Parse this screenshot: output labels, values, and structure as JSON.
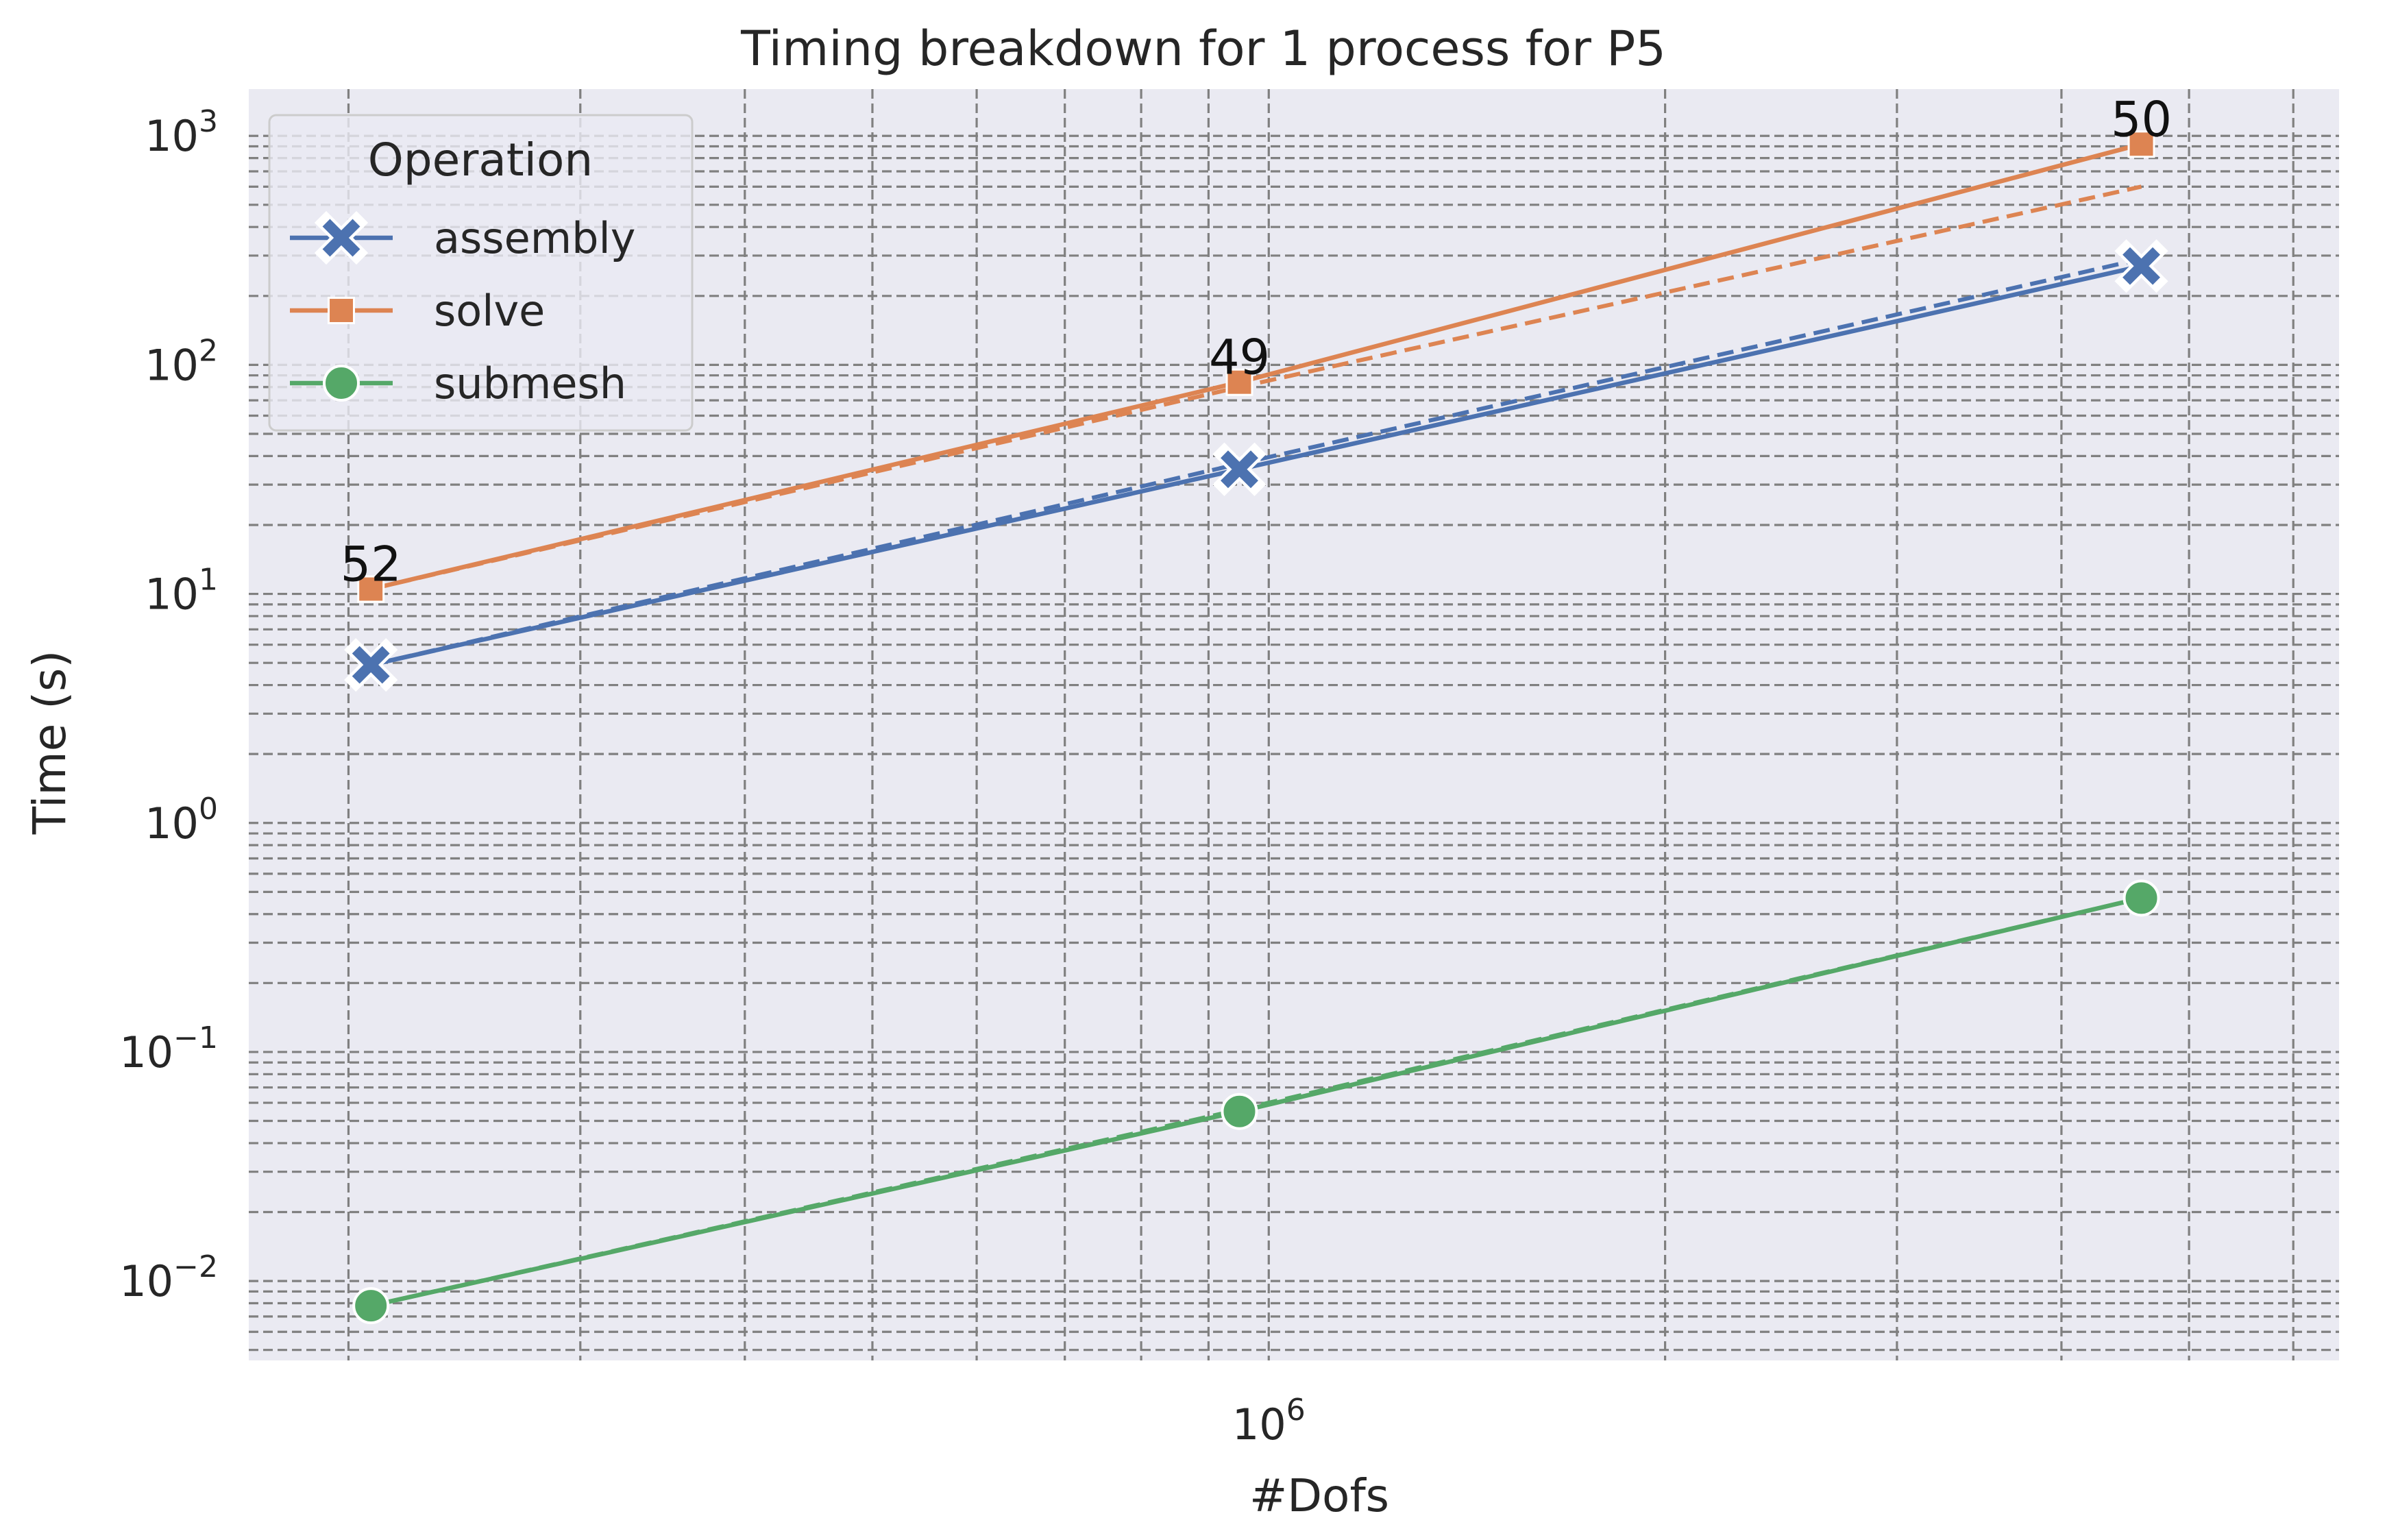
{
  "chart_data": {
    "type": "line",
    "title": "Timing breakdown for 1 process for P5",
    "xlabel": "#Dofs",
    "ylabel": "Time (s)",
    "xscale": "log",
    "yscale": "log",
    "xlim": [
      168000,
      6500000
    ],
    "ylim": [
      0.0045,
      1600
    ],
    "x_ticks": [
      {
        "base": "10",
        "exp": "6",
        "value": 1000000
      }
    ],
    "y_ticks": [
      {
        "base": "10",
        "exp": "−2",
        "value": 0.01
      },
      {
        "base": "10",
        "exp": "−1",
        "value": 0.1
      },
      {
        "base": "10",
        "exp": "0",
        "value": 1
      },
      {
        "base": "10",
        "exp": "1",
        "value": 10
      },
      {
        "base": "10",
        "exp": "2",
        "value": 100
      },
      {
        "base": "10",
        "exp": "3",
        "value": 1000
      }
    ],
    "grid": true,
    "legend": {
      "title": "Operation",
      "position": "top-left"
    },
    "x": [
      208000,
      950000,
      4600000
    ],
    "series": [
      {
        "name": "assembly",
        "color": "#4c72b0",
        "marker": "x",
        "values": [
          4.9,
          35,
          270
        ],
        "reference": [
          4.9,
          37,
          290
        ]
      },
      {
        "name": "solve",
        "color": "#dd8452",
        "marker": "square",
        "values": [
          10.5,
          84,
          920
        ],
        "reference": [
          10.5,
          80,
          600
        ]
      },
      {
        "name": "submesh",
        "color": "#55a868",
        "marker": "circle",
        "values": [
          0.0078,
          0.055,
          0.47
        ],
        "reference": [
          0.0078,
          0.056,
          0.47
        ]
      }
    ],
    "annotations": [
      {
        "text": "52",
        "x": 208000,
        "y": 10.5
      },
      {
        "text": "49",
        "x": 950000,
        "y": 84
      },
      {
        "text": "50",
        "x": 4600000,
        "y": 920
      }
    ],
    "colors": {
      "background": "#eaeaf2",
      "grid": "#808080"
    }
  }
}
